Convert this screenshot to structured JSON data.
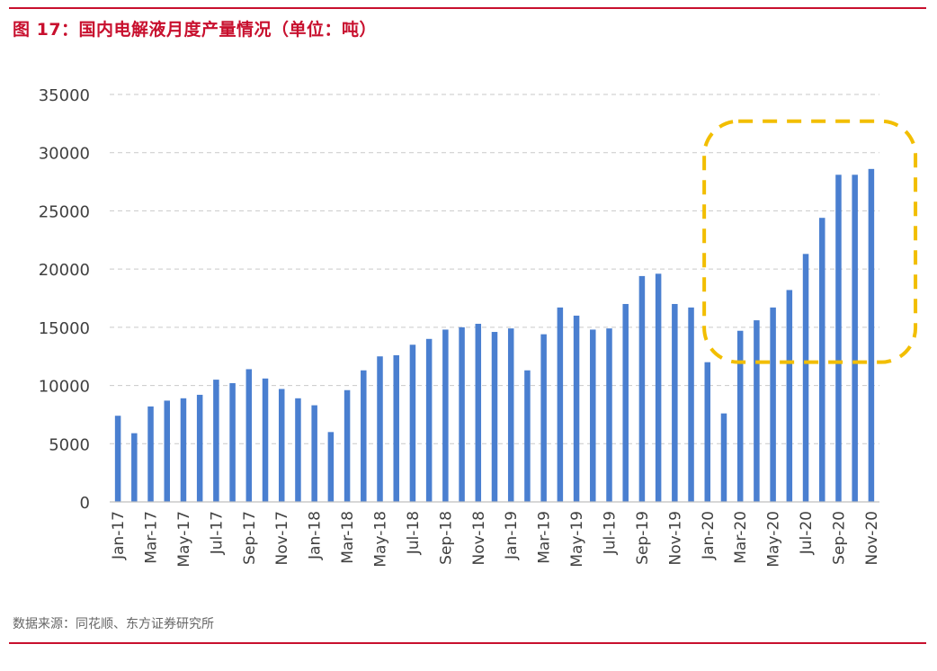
{
  "figure": {
    "title": "图 17：国内电解液月度产量情况（单位：吨）",
    "source": "数据来源：同花顺、东方证券研究所",
    "accent_color": "#c8102e"
  },
  "chart_data": {
    "type": "bar",
    "title": "图 17：国内电解液月度产量情况（单位：吨）",
    "xlabel": "",
    "ylabel": "",
    "ylim": [
      0,
      35000
    ],
    "yticks": [
      0,
      5000,
      10000,
      15000,
      20000,
      25000,
      30000,
      35000
    ],
    "grid": true,
    "legend": "none",
    "bar_color": "#4a7fd0",
    "highlight_color": "#f2be00",
    "highlight_range": [
      "Feb-20",
      "Nov-20"
    ],
    "categories": [
      "Jan-17",
      "Feb-17",
      "Mar-17",
      "Apr-17",
      "May-17",
      "Jun-17",
      "Jul-17",
      "Aug-17",
      "Sep-17",
      "Oct-17",
      "Nov-17",
      "Dec-17",
      "Jan-18",
      "Feb-18",
      "Mar-18",
      "Apr-18",
      "May-18",
      "Jun-18",
      "Jul-18",
      "Aug-18",
      "Sep-18",
      "Oct-18",
      "Nov-18",
      "Dec-18",
      "Jan-19",
      "Feb-19",
      "Mar-19",
      "Apr-19",
      "May-19",
      "Jun-19",
      "Jul-19",
      "Aug-19",
      "Sep-19",
      "Oct-19",
      "Nov-19",
      "Dec-19",
      "Jan-20",
      "Feb-20",
      "Mar-20",
      "Apr-20",
      "May-20",
      "Jun-20",
      "Jul-20",
      "Aug-20",
      "Sep-20",
      "Oct-20",
      "Nov-20"
    ],
    "tick_labels": [
      "Jan-17",
      "Mar-17",
      "May-17",
      "Jul-17",
      "Sep-17",
      "Nov-17",
      "Jan-18",
      "Mar-18",
      "May-18",
      "Jul-18",
      "Sep-18",
      "Nov-18",
      "Jan-19",
      "Mar-19",
      "May-19",
      "Jul-19",
      "Sep-19",
      "Nov-19",
      "Jan-20",
      "Mar-20",
      "May-20",
      "Jul-20",
      "Sep-20",
      "Nov-20"
    ],
    "values": [
      7400,
      5900,
      8200,
      8700,
      8900,
      9200,
      10500,
      10200,
      11400,
      10600,
      9700,
      8900,
      8300,
      6000,
      9600,
      11300,
      12500,
      12600,
      13500,
      14000,
      14800,
      15000,
      15300,
      14600,
      14900,
      11300,
      14400,
      16700,
      16000,
      14800,
      14900,
      17000,
      19400,
      19600,
      17000,
      16700,
      12000,
      7600,
      14700,
      15600,
      16700,
      18200,
      21300,
      24400,
      28100,
      28100,
      28600
    ]
  }
}
